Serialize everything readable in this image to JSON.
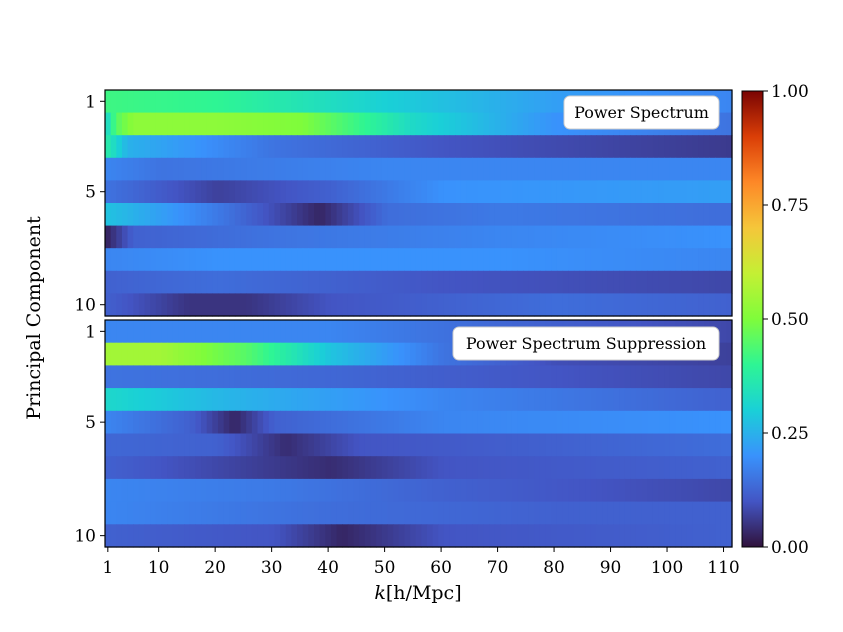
{
  "chart_data": {
    "type": "heatmap",
    "ylabel": "Principal Component",
    "xlabel_italic": "k",
    "xlabel_rest": "[h/Mpc]",
    "xticks": [
      "1",
      "10",
      "20",
      "30",
      "40",
      "50",
      "60",
      "70",
      "80",
      "90",
      "100",
      "110"
    ],
    "xlim": [
      0,
      111
    ],
    "colorbar": {
      "range": [
        0,
        1
      ],
      "ticks": [
        "0.00",
        "0.25",
        "0.50",
        "0.75",
        "1.00"
      ],
      "colormap": "turbo"
    },
    "panels": [
      {
        "label": "Power Spectrum",
        "yticks": [
          "1",
          "5",
          "10"
        ],
        "rows": [
          {
            "component": 1,
            "profile": [
              [
                0,
                0.42
              ],
              [
                20,
                0.4
              ],
              [
                50,
                0.3
              ],
              [
                80,
                0.22
              ],
              [
                111,
                0.18
              ]
            ]
          },
          {
            "component": 2,
            "profile": [
              [
                0,
                0.3
              ],
              [
                2,
                0.45
              ],
              [
                5,
                0.52
              ],
              [
                20,
                0.52
              ],
              [
                35,
                0.5
              ],
              [
                55,
                0.32
              ],
              [
                80,
                0.2
              ],
              [
                111,
                0.15
              ]
            ]
          },
          {
            "component": 3,
            "profile": [
              [
                0,
                0.38
              ],
              [
                4,
                0.25
              ],
              [
                30,
                0.15
              ],
              [
                60,
                0.1
              ],
              [
                111,
                0.06
              ]
            ]
          },
          {
            "component": 4,
            "profile": [
              [
                0,
                0.18
              ],
              [
                10,
                0.15
              ],
              [
                50,
                0.18
              ],
              [
                111,
                0.18
              ]
            ]
          },
          {
            "component": 5,
            "profile": [
              [
                0,
                0.15
              ],
              [
                20,
                0.07
              ],
              [
                40,
                0.12
              ],
              [
                60,
                0.2
              ],
              [
                111,
                0.22
              ]
            ]
          },
          {
            "component": 6,
            "profile": [
              [
                0,
                0.28
              ],
              [
                20,
                0.16
              ],
              [
                38,
                0.03
              ],
              [
                50,
                0.14
              ],
              [
                70,
                0.16
              ],
              [
                111,
                0.14
              ]
            ]
          },
          {
            "component": 7,
            "profile": [
              [
                0,
                0.02
              ],
              [
                5,
                0.12
              ],
              [
                30,
                0.15
              ],
              [
                70,
                0.18
              ],
              [
                111,
                0.2
              ]
            ]
          },
          {
            "component": 8,
            "profile": [
              [
                0,
                0.18
              ],
              [
                20,
                0.2
              ],
              [
                70,
                0.2
              ],
              [
                111,
                0.18
              ]
            ]
          },
          {
            "component": 9,
            "profile": [
              [
                0,
                0.12
              ],
              [
                20,
                0.14
              ],
              [
                60,
                0.1
              ],
              [
                111,
                0.08
              ]
            ]
          },
          {
            "component": 10,
            "profile": [
              [
                0,
                0.12
              ],
              [
                15,
                0.05
              ],
              [
                25,
                0.05
              ],
              [
                40,
                0.1
              ],
              [
                80,
                0.14
              ],
              [
                111,
                0.12
              ]
            ]
          }
        ]
      },
      {
        "label": "Power Spectrum Suppression",
        "yticks": [
          "1",
          "5",
          "10"
        ],
        "rows": [
          {
            "component": 1,
            "profile": [
              [
                0,
                0.18
              ],
              [
                40,
                0.18
              ],
              [
                70,
                0.13
              ],
              [
                111,
                0.08
              ]
            ]
          },
          {
            "component": 2,
            "profile": [
              [
                0,
                0.55
              ],
              [
                10,
                0.55
              ],
              [
                25,
                0.45
              ],
              [
                40,
                0.28
              ],
              [
                60,
                0.15
              ],
              [
                80,
                0.09
              ],
              [
                111,
                0.07
              ]
            ]
          },
          {
            "component": 3,
            "profile": [
              [
                0,
                0.15
              ],
              [
                40,
                0.13
              ],
              [
                80,
                0.1
              ],
              [
                111,
                0.08
              ]
            ]
          },
          {
            "component": 4,
            "profile": [
              [
                0,
                0.32
              ],
              [
                20,
                0.26
              ],
              [
                60,
                0.18
              ],
              [
                111,
                0.12
              ]
            ]
          },
          {
            "component": 5,
            "profile": [
              [
                0,
                0.18
              ],
              [
                15,
                0.12
              ],
              [
                23,
                0.03
              ],
              [
                30,
                0.12
              ],
              [
                60,
                0.18
              ],
              [
                111,
                0.2
              ]
            ]
          },
          {
            "component": 6,
            "profile": [
              [
                0,
                0.13
              ],
              [
                20,
                0.12
              ],
              [
                32,
                0.04
              ],
              [
                45,
                0.1
              ],
              [
                80,
                0.12
              ],
              [
                111,
                0.14
              ]
            ]
          },
          {
            "component": 7,
            "profile": [
              [
                0,
                0.12
              ],
              [
                20,
                0.08
              ],
              [
                40,
                0.04
              ],
              [
                60,
                0.1
              ],
              [
                111,
                0.12
              ]
            ]
          },
          {
            "component": 8,
            "profile": [
              [
                0,
                0.18
              ],
              [
                30,
                0.16
              ],
              [
                60,
                0.12
              ],
              [
                111,
                0.08
              ]
            ]
          },
          {
            "component": 9,
            "profile": [
              [
                0,
                0.18
              ],
              [
                40,
                0.14
              ],
              [
                80,
                0.12
              ],
              [
                111,
                0.12
              ]
            ]
          },
          {
            "component": 10,
            "profile": [
              [
                0,
                0.12
              ],
              [
                30,
                0.1
              ],
              [
                42,
                0.03
              ],
              [
                60,
                0.1
              ],
              [
                111,
                0.12
              ]
            ]
          }
        ]
      }
    ]
  }
}
